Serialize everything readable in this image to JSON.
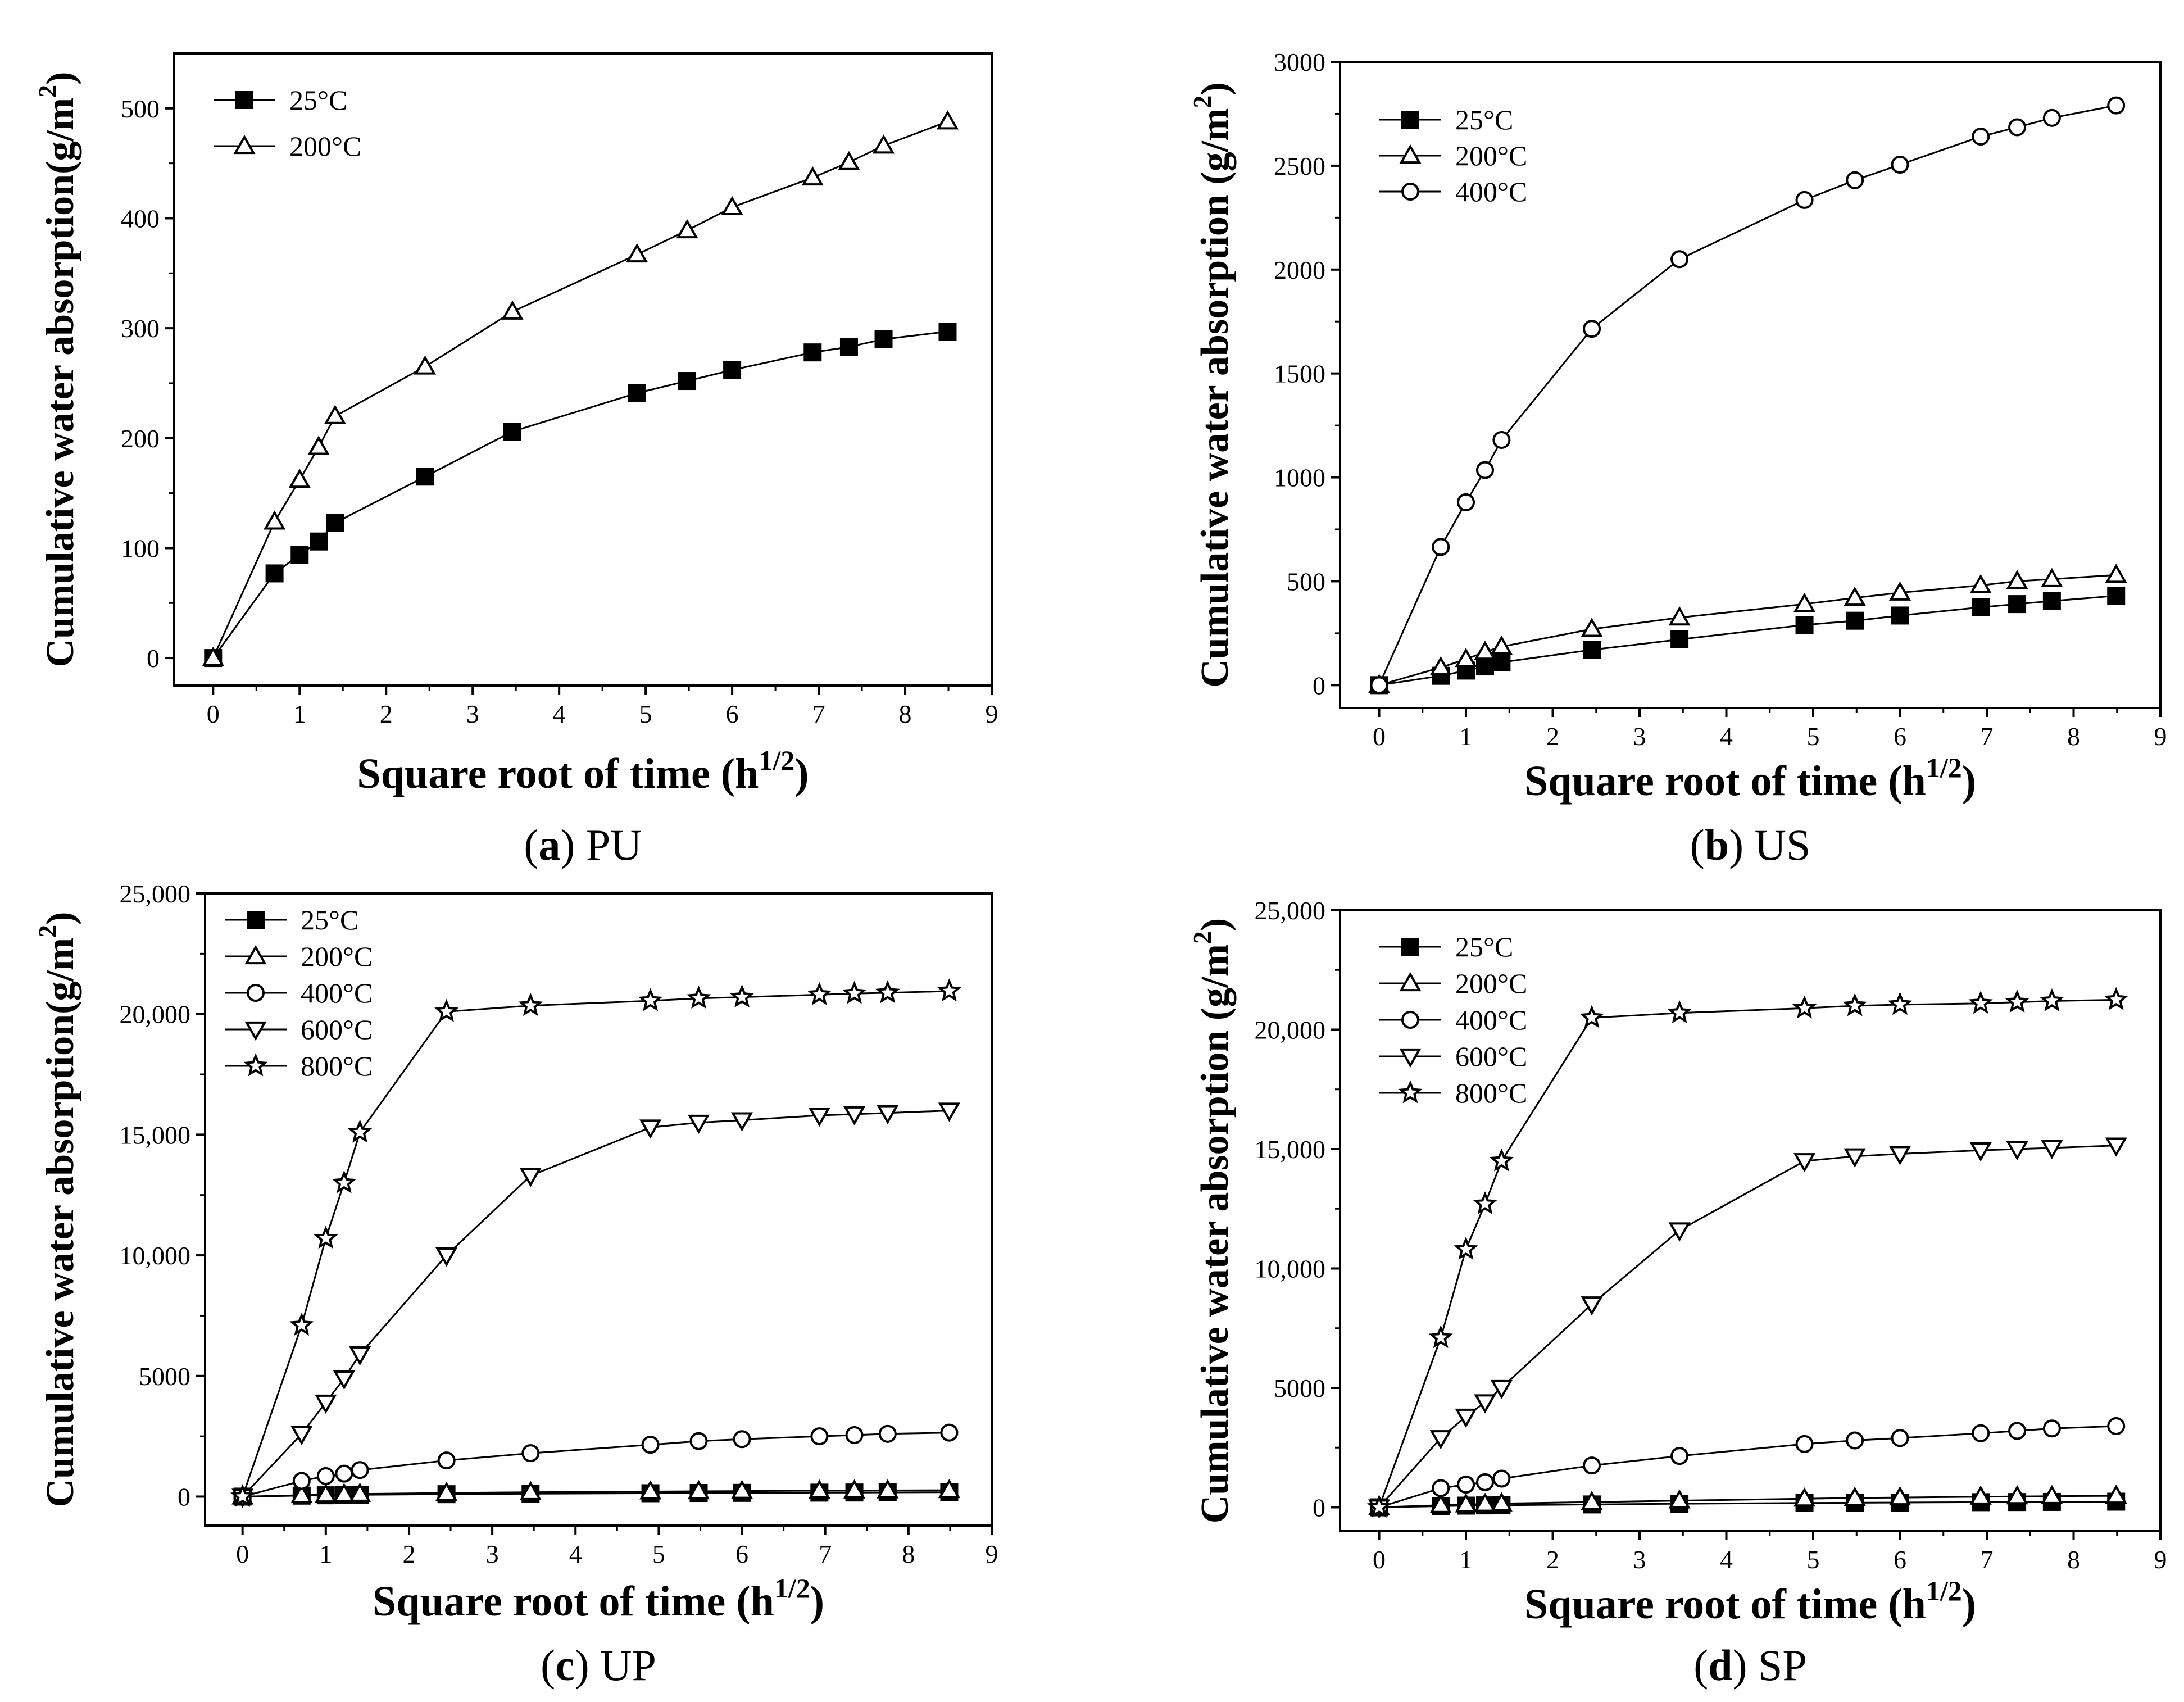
{
  "chart_data": [
    {
      "type": "line",
      "caption": {
        "letter": "(a)",
        "name": "PU"
      },
      "xlabel": "Square root of time (h",
      "xlabel_sup": "1/2",
      "xlabel_end": ")",
      "ylabel": "Cumulative water absorption(g/m",
      "ylabel_sup": "2",
      "ylabel_end": ")",
      "xlim": [
        -0.45,
        9.0
      ],
      "ylim": [
        -25,
        550
      ],
      "xticks": [
        "0",
        "1",
        "2",
        "3",
        "4",
        "5",
        "6",
        "7",
        "8",
        "9"
      ],
      "yticks": [
        "0",
        "100",
        "200",
        "300",
        "400",
        "500"
      ],
      "x": [
        0,
        0.71,
        1.0,
        1.22,
        1.41,
        2.45,
        3.46,
        4.9,
        5.48,
        6.0,
        6.93,
        7.35,
        7.75,
        8.49
      ],
      "series": [
        {
          "name": "25°C",
          "marker": "square-filled",
          "values": [
            0,
            77,
            94,
            106,
            123,
            165,
            206,
            241,
            252,
            262,
            278,
            283,
            290,
            297
          ]
        },
        {
          "name": "200°C",
          "marker": "triangle-up",
          "values": [
            0,
            124,
            162,
            192,
            220,
            265,
            315,
            367,
            389,
            410,
            437,
            451,
            466,
            488
          ]
        }
      ]
    },
    {
      "type": "line",
      "caption": {
        "letter": "(b)",
        "name": "US"
      },
      "xlabel": "Square root of time (h",
      "xlabel_sup": "1/2",
      "xlabel_end": ")",
      "ylabel": "Cumulative water absorption (g/m",
      "ylabel_sup": "2",
      "ylabel_end": ")",
      "xlim": [
        -0.45,
        9.0
      ],
      "ylim": [
        -110,
        3000
      ],
      "xticks": [
        "0",
        "1",
        "2",
        "3",
        "4",
        "5",
        "6",
        "7",
        "8",
        "9"
      ],
      "yticks": [
        "0",
        "500",
        "1000",
        "1500",
        "2000",
        "2500",
        "3000"
      ],
      "x": [
        0,
        0.71,
        1.0,
        1.22,
        1.41,
        2.45,
        3.46,
        4.9,
        5.48,
        6.0,
        6.93,
        7.35,
        7.75,
        8.49
      ],
      "series": [
        {
          "name": "25°C",
          "marker": "square-filled",
          "values": [
            0,
            45,
            70,
            90,
            110,
            170,
            220,
            290,
            310,
            335,
            375,
            390,
            405,
            430
          ]
        },
        {
          "name": "200°C",
          "marker": "triangle-up",
          "values": [
            0,
            85,
            125,
            160,
            185,
            270,
            325,
            390,
            420,
            445,
            480,
            500,
            510,
            530
          ]
        },
        {
          "name": "400°C",
          "marker": "circle",
          "values": [
            0,
            665,
            880,
            1035,
            1180,
            1715,
            2050,
            2335,
            2430,
            2505,
            2640,
            2685,
            2730,
            2790
          ]
        }
      ]
    },
    {
      "type": "line",
      "caption": {
        "letter": "(c)",
        "name": "UP"
      },
      "xlabel": "Square root of time (h",
      "xlabel_sup": "1/2",
      "xlabel_end": ")",
      "ylabel": "Cumulative water absorption(g/m",
      "ylabel_sup": "2",
      "ylabel_end": ")",
      "xlim": [
        -0.45,
        9.0
      ],
      "ylim": [
        -1200,
        25000
      ],
      "xticks": [
        "0",
        "1",
        "2",
        "3",
        "4",
        "5",
        "6",
        "7",
        "8",
        "9"
      ],
      "yticks": [
        "0",
        "5000",
        "10,000",
        "15,000",
        "20,000",
        "25,000"
      ],
      "x": [
        0,
        0.71,
        1.0,
        1.22,
        1.41,
        2.45,
        3.46,
        4.9,
        5.48,
        6.0,
        6.93,
        7.35,
        7.75,
        8.49
      ],
      "series": [
        {
          "name": "25°C",
          "marker": "square-filled",
          "values": [
            0,
            40,
            55,
            65,
            75,
            100,
            120,
            140,
            150,
            155,
            165,
            170,
            175,
            180
          ]
        },
        {
          "name": "200°C",
          "marker": "triangle-up",
          "values": [
            0,
            60,
            80,
            95,
            110,
            150,
            180,
            210,
            220,
            230,
            245,
            250,
            255,
            265
          ]
        },
        {
          "name": "400°C",
          "marker": "circle",
          "values": [
            0,
            650,
            850,
            950,
            1100,
            1500,
            1800,
            2150,
            2300,
            2380,
            2500,
            2550,
            2600,
            2650
          ]
        },
        {
          "name": "600°C",
          "marker": "triangle-down",
          "values": [
            0,
            2600,
            3900,
            4900,
            5900,
            10000,
            13300,
            15300,
            15500,
            15600,
            15800,
            15850,
            15900,
            16000
          ]
        },
        {
          "name": "800°C",
          "marker": "star",
          "values": [
            0,
            7100,
            10700,
            13000,
            15100,
            20100,
            20350,
            20550,
            20650,
            20700,
            20800,
            20850,
            20880,
            20950
          ]
        }
      ]
    },
    {
      "type": "line",
      "caption": {
        "letter": "(d)",
        "name": "SP"
      },
      "xlabel": "Square root of time (h",
      "xlabel_sup": "1/2",
      "xlabel_end": ")",
      "ylabel": "Cumulative water absorption (g/m",
      "ylabel_sup": "2",
      "ylabel_end": ")",
      "xlim": [
        -0.45,
        9.0
      ],
      "ylim": [
        -1000,
        25000
      ],
      "xticks": [
        "0",
        "1",
        "2",
        "3",
        "4",
        "5",
        "6",
        "7",
        "8",
        "9"
      ],
      "yticks": [
        "0",
        "5000",
        "10,000",
        "15,000",
        "20,000",
        "25,000"
      ],
      "x": [
        0,
        0.71,
        1.0,
        1.22,
        1.41,
        2.45,
        3.46,
        4.9,
        5.48,
        6.0,
        6.93,
        7.35,
        7.75,
        8.49
      ],
      "series": [
        {
          "name": "25°C",
          "marker": "square-filled",
          "values": [
            0,
            50,
            70,
            80,
            90,
            120,
            150,
            180,
            190,
            200,
            215,
            220,
            225,
            235
          ]
        },
        {
          "name": "200°C",
          "marker": "triangle-up",
          "values": [
            0,
            90,
            120,
            140,
            160,
            220,
            280,
            360,
            390,
            410,
            440,
            455,
            465,
            480
          ]
        },
        {
          "name": "400°C",
          "marker": "circle",
          "values": [
            0,
            800,
            950,
            1050,
            1200,
            1750,
            2150,
            2650,
            2800,
            2900,
            3100,
            3200,
            3300,
            3400
          ]
        },
        {
          "name": "600°C",
          "marker": "triangle-down",
          "values": [
            0,
            2900,
            3800,
            4400,
            5000,
            8500,
            11600,
            14500,
            14700,
            14800,
            14950,
            15000,
            15050,
            15150
          ]
        },
        {
          "name": "800°C",
          "marker": "star",
          "values": [
            0,
            7100,
            10800,
            12700,
            14500,
            20500,
            20700,
            20900,
            21000,
            21050,
            21100,
            21150,
            21200,
            21250
          ]
        }
      ]
    }
  ]
}
